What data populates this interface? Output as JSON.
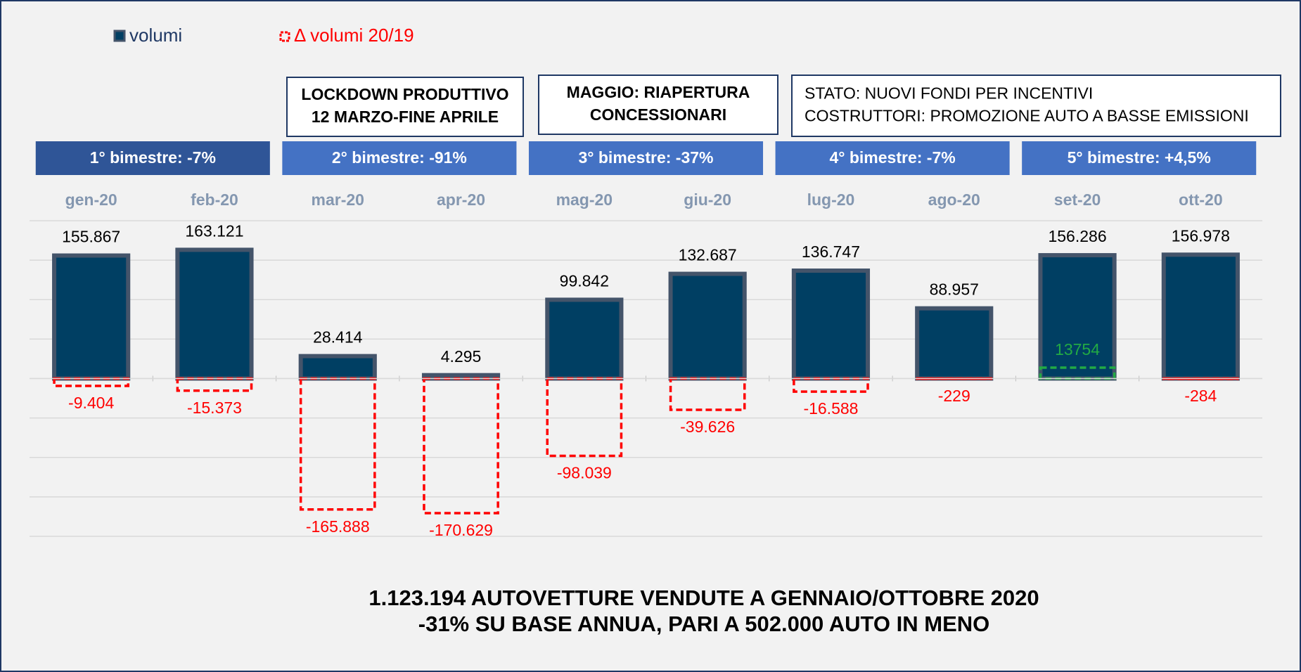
{
  "chart_data": {
    "type": "bar",
    "categories": [
      "gen-20",
      "feb-20",
      "mar-20",
      "apr-20",
      "mag-20",
      "giu-20",
      "lug-20",
      "ago-20",
      "set-20",
      "ott-20"
    ],
    "series": [
      {
        "name": "volumi",
        "color": "#003f63",
        "values": [
          155867,
          163121,
          28414,
          4295,
          99842,
          132687,
          136747,
          88957,
          156286,
          156978
        ],
        "value_labels": [
          "155.867",
          "163.121",
          "28.414",
          "4.295",
          "99.842",
          "132.687",
          "136.747",
          "88.957",
          "156.286",
          "156.978"
        ]
      },
      {
        "name": "Δ volumi 20/19",
        "color": "#ff0000",
        "colors": [
          "#ff0000",
          "#ff0000",
          "#ff0000",
          "#ff0000",
          "#ff0000",
          "#ff0000",
          "#ff0000",
          "#ff0000",
          "#22aa44",
          "#ff0000"
        ],
        "values": [
          -9404,
          -15373,
          -165888,
          -170629,
          -98039,
          -39626,
          -16588,
          -229,
          13754,
          -284
        ],
        "value_labels": [
          "-9.404",
          "-15.373",
          "-165.888",
          "-170.629",
          "-98.039",
          "-39.626",
          "-16.588",
          "-229",
          "13754",
          "-284"
        ]
      }
    ],
    "ylim": [
      -200000,
      200000
    ],
    "yticks": [
      -200000,
      -150000,
      -100000,
      -50000,
      0,
      50000,
      100000,
      150000,
      200000
    ],
    "grid": true,
    "legend": "top-left",
    "bimesters": [
      "1° bimestre: -7%",
      "2° bimestre: -91%",
      "3° bimestre: -37%",
      "4° bimestre: -7%",
      "5° bimestre: +4,5%"
    ],
    "events": [
      {
        "lines": [
          "LOCKDOWN PRODUTTIVO",
          "12 MARZO-FINE APRILE"
        ]
      },
      {
        "lines": [
          "MAGGIO: RIAPERTURA",
          "CONCESSIONARI"
        ]
      },
      {
        "lines": [
          "STATO: NUOVI FONDI PER INCENTIVI",
          "COSTRUTTORI: PROMOZIONE AUTO A BASSE EMISSIONI"
        ]
      }
    ],
    "footer": [
      "1.123.194 AUTOVETTURE VENDUTE A GENNAIO/OTTOBRE 2020",
      "-31% SU BASE ANNUA,  PARI A 502.000 AUTO IN MENO"
    ]
  }
}
